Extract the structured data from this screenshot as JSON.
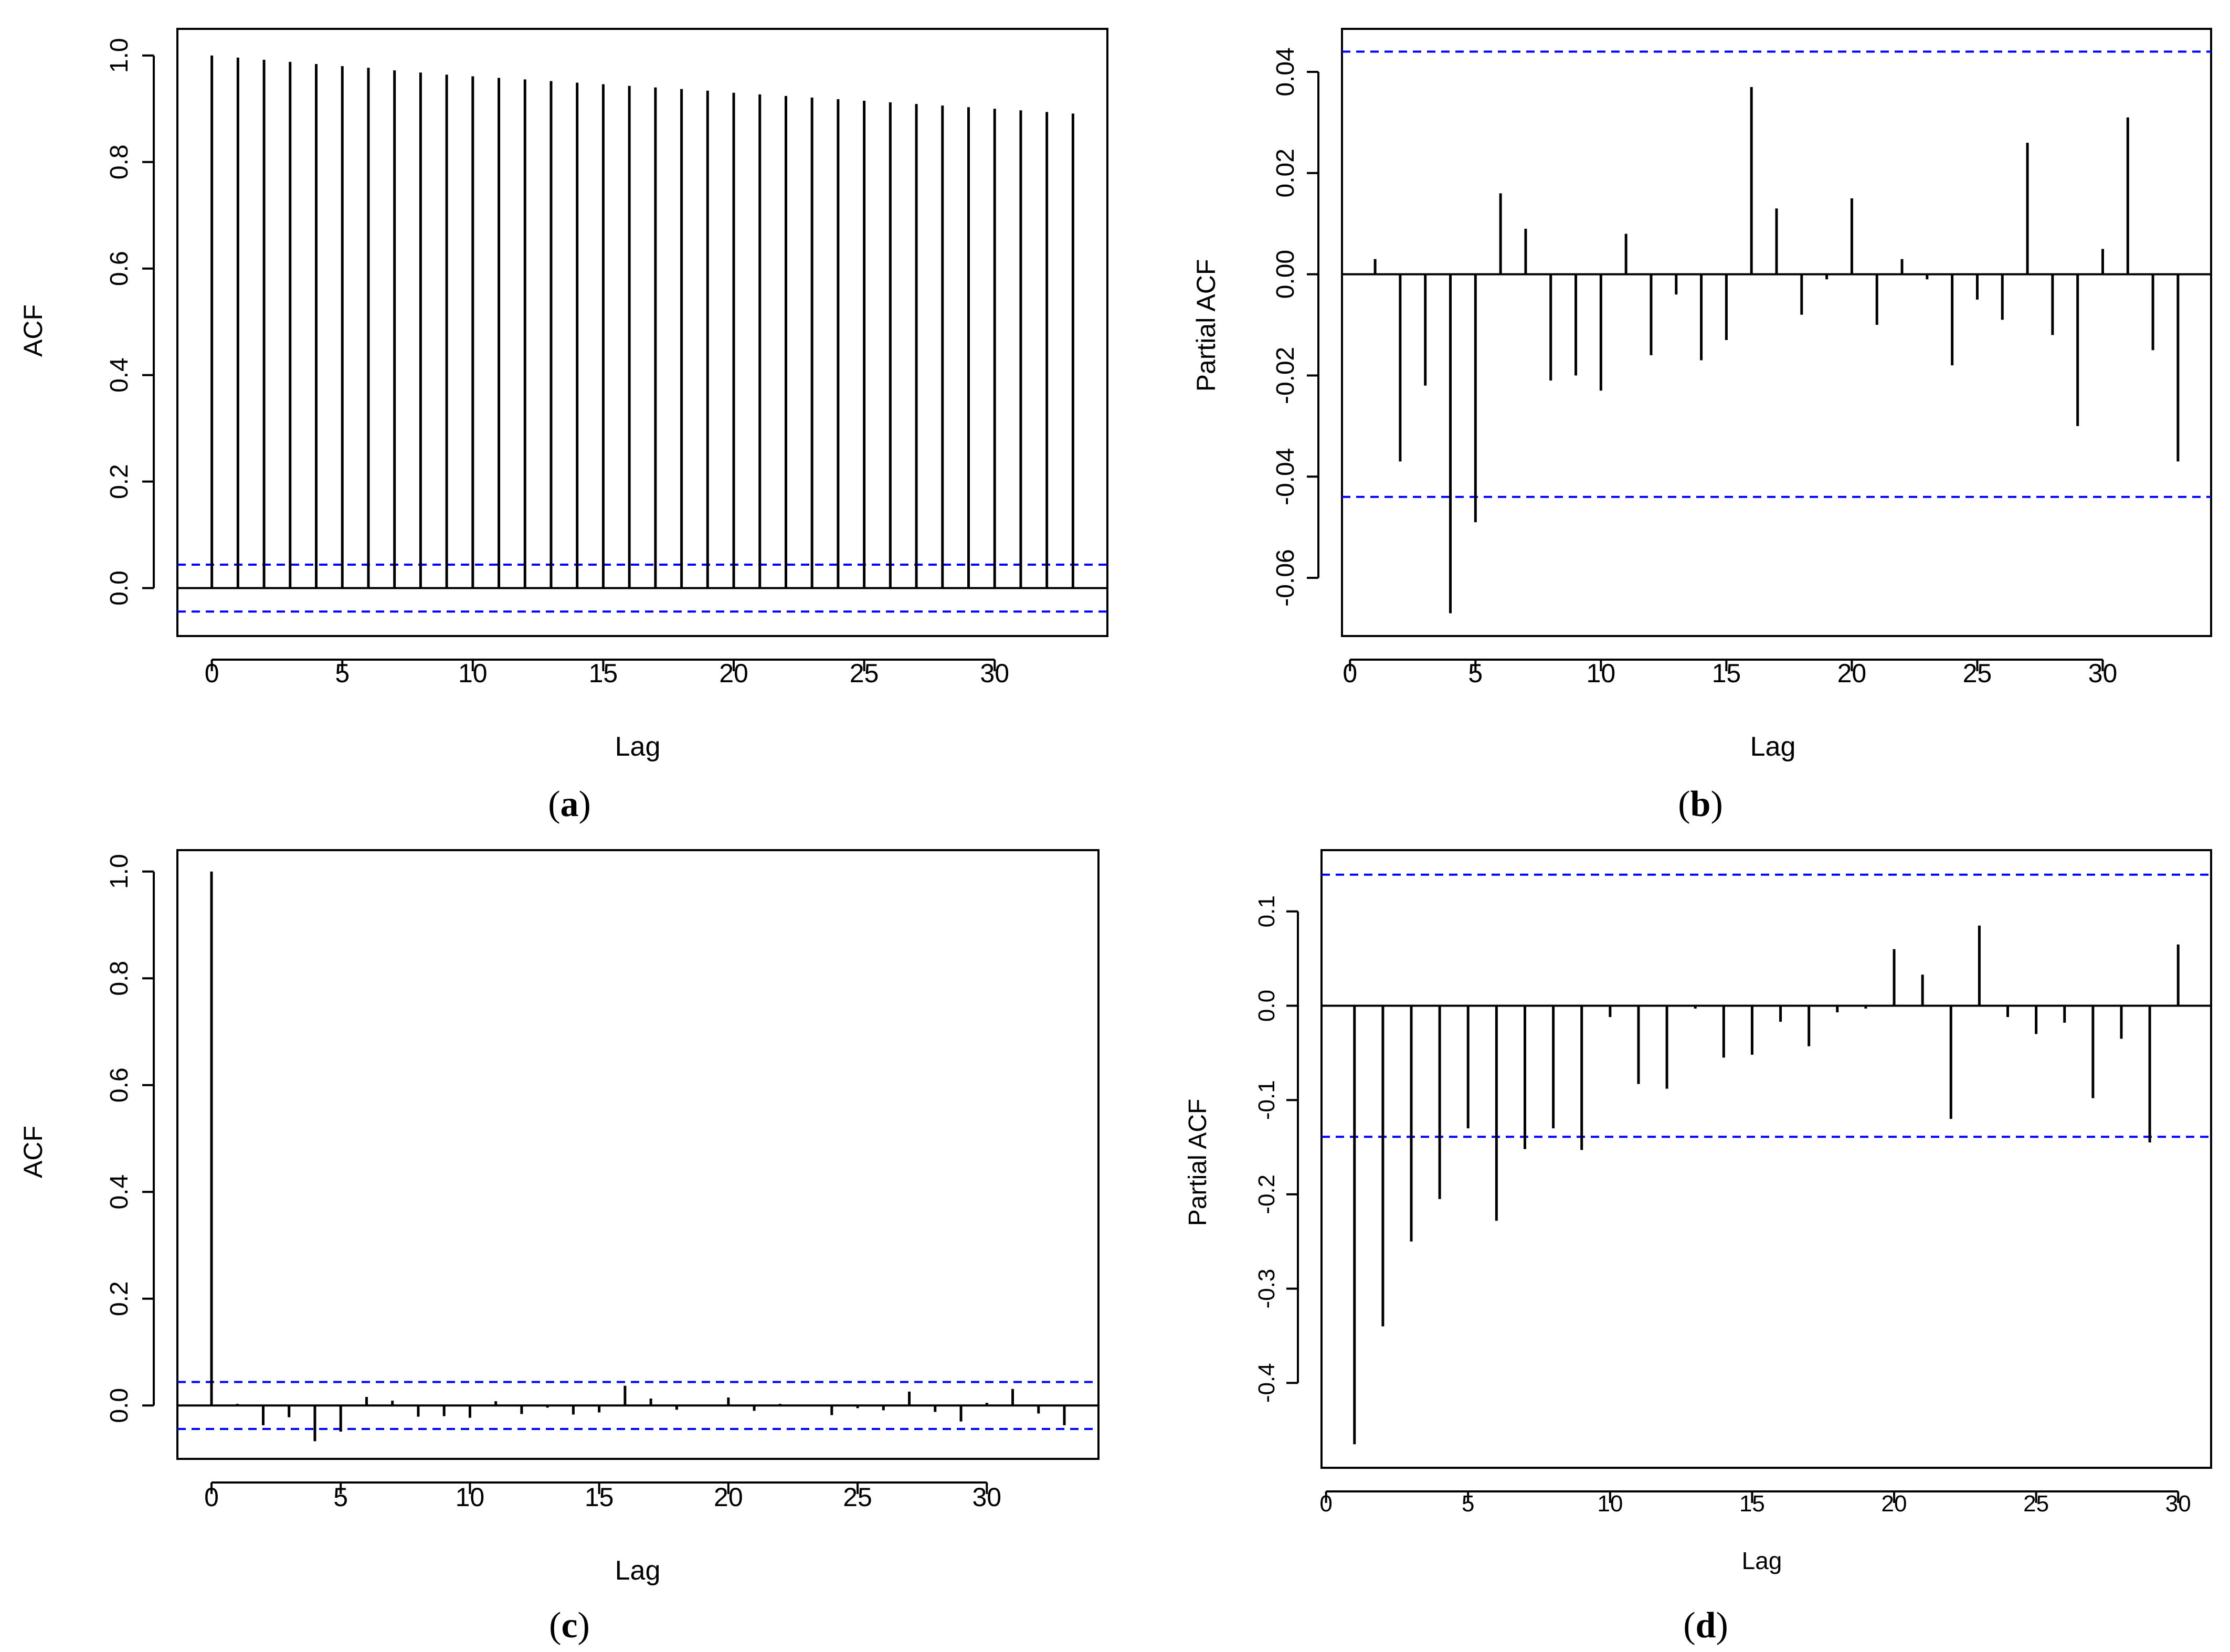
{
  "figure": {
    "panel_captions": [
      {
        "paren_open": "(",
        "letter": "a",
        "paren_close": ")"
      },
      {
        "paren_open": "(",
        "letter": "b",
        "paren_close": ")"
      },
      {
        "paren_open": "(",
        "letter": "c",
        "paren_close": ")"
      },
      {
        "paren_open": "(",
        "letter": "d",
        "paren_close": ")"
      }
    ]
  },
  "colors": {
    "bars": "#000000",
    "conf_band": "#0000ff",
    "frame": "#000000"
  },
  "chart_data": [
    {
      "id": "a",
      "type": "bar",
      "title": "",
      "xlabel": "Lag",
      "ylabel": "ACF",
      "x": [
        0,
        1,
        2,
        3,
        4,
        5,
        6,
        7,
        8,
        9,
        10,
        11,
        12,
        13,
        14,
        15,
        16,
        17,
        18,
        19,
        20,
        21,
        22,
        23,
        24,
        25,
        26,
        27,
        28,
        29,
        30,
        31,
        32,
        33
      ],
      "values": [
        1.0,
        0.996,
        0.992,
        0.988,
        0.984,
        0.98,
        0.977,
        0.972,
        0.968,
        0.964,
        0.961,
        0.958,
        0.955,
        0.952,
        0.949,
        0.946,
        0.943,
        0.94,
        0.937,
        0.934,
        0.93,
        0.927,
        0.924,
        0.921,
        0.918,
        0.915,
        0.912,
        0.909,
        0.906,
        0.903,
        0.9,
        0.897,
        0.894,
        0.891
      ],
      "xlim": [
        -1.32,
        34.32
      ],
      "ylim": [
        -0.09,
        1.05
      ],
      "xticks": [
        0,
        5,
        10,
        15,
        20,
        25,
        30
      ],
      "xtick_labels": [
        "0",
        "5",
        "10",
        "15",
        "20",
        "25",
        "30"
      ],
      "yticks": [
        0,
        0.2,
        0.4,
        0.6,
        0.8,
        1
      ],
      "ytick_labels": [
        "0.0",
        "0.2",
        "0.4",
        "0.6",
        "0.8",
        "1.0"
      ],
      "confidence_band": 0.044,
      "zero_line": true
    },
    {
      "id": "b",
      "type": "bar",
      "title": "",
      "xlabel": "Lag",
      "ylabel": "Partial ACF",
      "x": [
        1,
        2,
        3,
        4,
        5,
        6,
        7,
        8,
        9,
        10,
        11,
        12,
        13,
        14,
        15,
        16,
        17,
        18,
        19,
        20,
        21,
        22,
        23,
        24,
        25,
        26,
        27,
        28,
        29,
        30,
        31,
        32,
        33
      ],
      "values": [
        0.003,
        -0.037,
        -0.022,
        -0.067,
        -0.049,
        0.016,
        0.009,
        -0.021,
        -0.02,
        -0.023,
        0.008,
        -0.016,
        -0.004,
        -0.017,
        -0.013,
        0.037,
        0.013,
        -0.008,
        -0.001,
        0.015,
        -0.01,
        0.003,
        -0.001,
        -0.018,
        -0.005,
        -0.009,
        0.026,
        -0.012,
        -0.03,
        0.005,
        0.031,
        -0.015,
        -0.037
      ],
      "xlim": [
        -0.32,
        34.32
      ],
      "ylim": [
        -0.0715,
        0.0485
      ],
      "xticks": [
        0,
        5,
        10,
        15,
        20,
        25,
        30
      ],
      "xtick_labels": [
        "0",
        "5",
        "10",
        "15",
        "20",
        "25",
        "30"
      ],
      "yticks": [
        -0.06,
        -0.04,
        -0.02,
        0,
        0.02,
        0.04
      ],
      "ytick_labels": [
        "-0.06",
        "-0.04",
        "-0.02",
        "0.00",
        "0.02",
        "0.04"
      ],
      "confidence_band": 0.044,
      "zero_line": true
    },
    {
      "id": "c",
      "type": "bar",
      "title": "",
      "xlabel": "Lag",
      "ylabel": "ACF",
      "x": [
        0,
        1,
        2,
        3,
        4,
        5,
        6,
        7,
        8,
        9,
        10,
        11,
        12,
        13,
        14,
        15,
        16,
        17,
        18,
        19,
        20,
        21,
        22,
        23,
        24,
        25,
        26,
        27,
        28,
        29,
        30,
        31,
        32,
        33
      ],
      "values": [
        1.0,
        0.003,
        -0.037,
        -0.022,
        -0.067,
        -0.049,
        0.016,
        0.009,
        -0.021,
        -0.02,
        -0.023,
        0.008,
        -0.016,
        -0.004,
        -0.017,
        -0.013,
        0.037,
        0.013,
        -0.008,
        -0.001,
        0.015,
        -0.01,
        0.003,
        -0.001,
        -0.018,
        -0.005,
        -0.009,
        0.026,
        -0.012,
        -0.03,
        0.005,
        0.031,
        -0.015,
        -0.037
      ],
      "xlim": [
        -1.32,
        34.32
      ],
      "ylim": [
        -0.1,
        1.04
      ],
      "xticks": [
        0,
        5,
        10,
        15,
        20,
        25,
        30
      ],
      "xtick_labels": [
        "0",
        "5",
        "10",
        "15",
        "20",
        "25",
        "30"
      ],
      "yticks": [
        0,
        0.2,
        0.4,
        0.6,
        0.8,
        1
      ],
      "ytick_labels": [
        "0.0",
        "0.2",
        "0.4",
        "0.6",
        "0.8",
        "1.0"
      ],
      "confidence_band": 0.044,
      "zero_line": true
    },
    {
      "id": "d",
      "type": "bar",
      "title": "",
      "xlabel": "Lag",
      "ylabel": "Partial ACF",
      "x": [
        1,
        2,
        3,
        4,
        5,
        6,
        7,
        8,
        9,
        10,
        11,
        12,
        13,
        14,
        15,
        16,
        17,
        18,
        19,
        20,
        21,
        22,
        23,
        24,
        25,
        26,
        27,
        28,
        29,
        30
      ],
      "values": [
        -0.465,
        -0.34,
        -0.25,
        -0.205,
        -0.13,
        -0.228,
        -0.152,
        -0.13,
        -0.153,
        -0.012,
        -0.083,
        -0.088,
        -0.003,
        -0.055,
        -0.052,
        -0.017,
        -0.043,
        -0.007,
        -0.003,
        0.06,
        0.033,
        -0.12,
        0.085,
        -0.012,
        -0.03,
        -0.018,
        -0.098,
        -0.035,
        -0.145,
        0.065
      ],
      "xlim": [
        -0.16,
        31.16
      ],
      "ylim": [
        -0.49,
        0.165
      ],
      "xticks": [
        0,
        5,
        10,
        15,
        20,
        25,
        30
      ],
      "xtick_labels": [
        "0",
        "5",
        "10",
        "15",
        "20",
        "25",
        "30"
      ],
      "yticks": [
        -0.4,
        -0.3,
        -0.2,
        -0.1,
        0,
        0.1
      ],
      "ytick_labels": [
        "-0.4",
        "-0.3",
        "-0.2",
        "-0.1",
        "0.0",
        "0.1"
      ],
      "confidence_band": 0.139,
      "zero_line": true
    }
  ]
}
